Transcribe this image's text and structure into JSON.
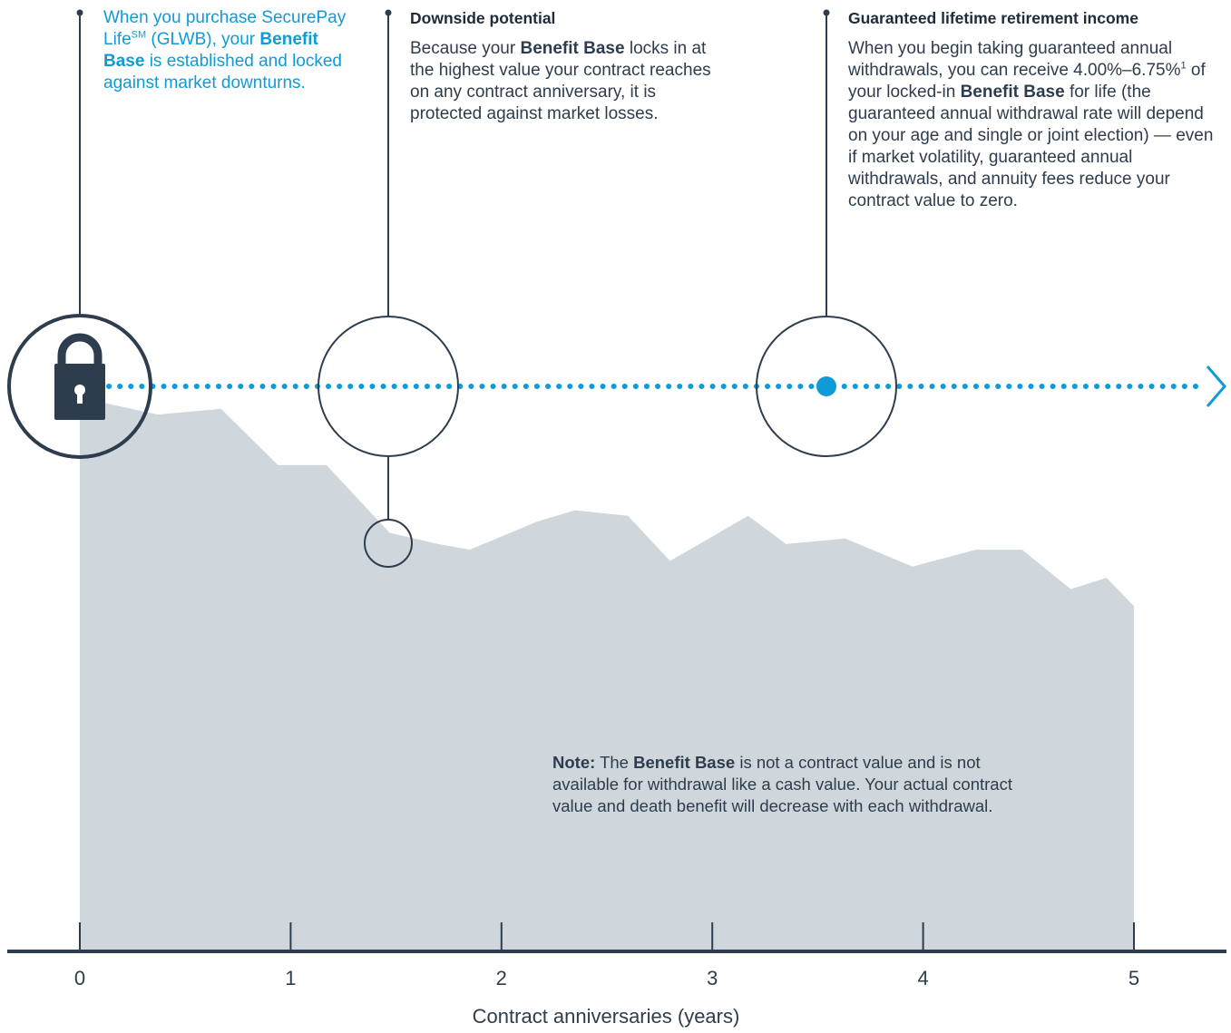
{
  "callouts": {
    "purchase": {
      "text_1": "When you purchase SecurePay Life",
      "superscript": "SM",
      "text_2": " (GLWB), your ",
      "bold": "Benefit Base",
      "text_3": " is established and locked against market downturns."
    },
    "downside": {
      "heading": "Downside potential",
      "text_1": "Because your ",
      "bold": "Benefit Base",
      "text_2": " locks in at the highest value your contract reaches on any contract anniversary, it is protected against market losses."
    },
    "income": {
      "heading": "Guaranteed lifetime retirement income",
      "text_1": "When you begin taking guaranteed annual withdrawals, you can receive 4.00%–6.75%",
      "superscript": "1",
      "text_2": " of your locked-in ",
      "bold": "Benefit Base",
      "text_3": " for life (the guaranteed annual withdrawal rate will depend on your age and single or joint election) — even if market volatility, guaranteed annual withdrawals, and annuity fees reduce your contract value to zero."
    }
  },
  "note": {
    "label": "Note:",
    "text_1": " The ",
    "bold": "Benefit Base",
    "text_2": " is not a contract value and is not available for withdrawal like a cash value. Your actual contract value and death benefit will decrease with each withdrawal."
  },
  "axis": {
    "title": "Contract anniversaries (years)",
    "ticks": [
      "0",
      "1",
      "2",
      "3",
      "4",
      "5"
    ]
  },
  "chart_data": {
    "type": "area",
    "x": [
      0,
      0.37,
      0.67,
      0.94,
      1.17,
      1.47,
      1.7,
      1.85,
      2.17,
      2.35,
      2.6,
      2.8,
      3.17,
      3.35,
      3.63,
      3.95,
      4.25,
      4.47,
      4.7,
      4.87,
      5.0
    ],
    "values": [
      0.98,
      0.95,
      0.96,
      0.86,
      0.86,
      0.74,
      0.72,
      0.71,
      0.76,
      0.78,
      0.77,
      0.69,
      0.77,
      0.72,
      0.73,
      0.68,
      0.71,
      0.71,
      0.64,
      0.66,
      0.61
    ],
    "benefit_base": 1.0,
    "xlim": [
      0,
      5
    ],
    "xlabel": "Contract anniversaries (years)"
  },
  "colors": {
    "area": "#cfd6dc",
    "accent": "#0f9bd7",
    "dark": "#2e3d4d"
  },
  "icons": {
    "lock": "lock-icon",
    "arrow": "chevron-right-icon"
  }
}
